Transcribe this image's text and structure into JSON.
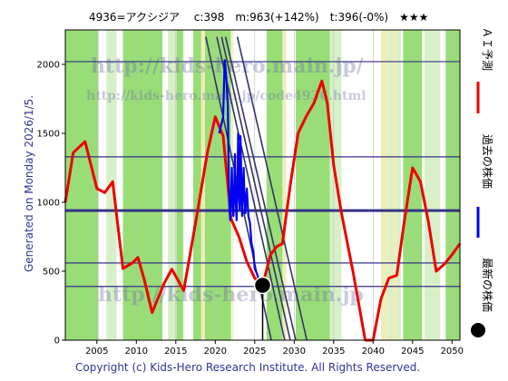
{
  "header": {
    "title": "4936=アクシジア　 c:398　m:963(+142%)　t:396(-0%)　★★★"
  },
  "side_label": "Generated on Monday 2026/1/5.",
  "legend": {
    "forecast": "ＡＩ予測",
    "past": "過去の株価",
    "latest": "最新の株価"
  },
  "footer": "Copyright (c) Kids-Hero Research Institute. All Rights Reserved.",
  "watermark": {
    "url1": "http://kids-hero.main.jp/",
    "url2": "http://kids-hero.main.jp/code4936.html",
    "url3": "http://kids-hero.main.jp"
  },
  "colors": {
    "green_band": "#99dd77",
    "yellow_band": "#eeeebb",
    "forecast": "#ee0000",
    "past": "#0000ee",
    "trend": "#333366",
    "hline": "#333388"
  },
  "chart_data": {
    "type": "line",
    "xlim": [
      2001,
      2051
    ],
    "ylim": [
      0,
      2250
    ],
    "x_ticks": [
      2005,
      2010,
      2015,
      2020,
      2025,
      2030,
      2035,
      2040,
      2045,
      2050
    ],
    "y_ticks": [
      0,
      500,
      1000,
      1500,
      2000
    ],
    "horizontal_lines": [
      390,
      560,
      940,
      1330,
      2020
    ],
    "series": [
      {
        "name": "ＡＩ予測",
        "x": [
          2001,
          2002,
          2003.5,
          2005,
          2006,
          2007,
          2008.3,
          2009.5,
          2010.2,
          2011,
          2012,
          2013.5,
          2014.5,
          2016,
          2017.5,
          2019,
          2020,
          2021,
          2022,
          2023,
          2024,
          2025,
          2026,
          2027,
          2027.8,
          2028.5,
          2029.5,
          2030.5,
          2031.5,
          2032.5,
          2033.5,
          2034.2,
          2035,
          2036,
          2037.5,
          2039,
          2040,
          2041,
          2042,
          2043,
          2044,
          2045,
          2046,
          2047,
          2048,
          2049,
          2050,
          2051
        ],
        "y": [
          1000,
          1360,
          1440,
          1100,
          1070,
          1150,
          520,
          560,
          600,
          440,
          200,
          410,
          515,
          360,
          850,
          1360,
          1620,
          1480,
          880,
          750,
          570,
          450,
          400,
          620,
          680,
          700,
          1120,
          1500,
          1620,
          1720,
          1880,
          1720,
          1270,
          920,
          480,
          -20,
          -50,
          300,
          450,
          470,
          880,
          1250,
          1150,
          860,
          500,
          550,
          620,
          700
        ]
      },
      {
        "name": "過去の株価",
        "x": [
          2020.5,
          2021,
          2021.2,
          2021.4,
          2021.6,
          2021.7,
          2021.8,
          2021.9,
          2022.0,
          2022.1,
          2022.2,
          2022.3,
          2022.4,
          2022.5,
          2022.6,
          2022.7,
          2022.8,
          2022.9,
          2023.0,
          2023.1,
          2023.2,
          2023.3,
          2023.4,
          2023.5,
          2023.6,
          2023.7,
          2023.8,
          2023.9,
          2024.0,
          2024.2,
          2024.4,
          2024.6,
          2024.8,
          2025.0,
          2025.3,
          2025.6,
          2026.0
        ],
        "y": [
          1500,
          1620,
          2030,
          1900,
          1700,
          1200,
          950,
          870,
          1050,
          1250,
          980,
          900,
          1100,
          1350,
          1000,
          870,
          1050,
          1500,
          1100,
          950,
          1480,
          1200,
          900,
          1050,
          1250,
          1050,
          920,
          1000,
          1100,
          900,
          850,
          700,
          650,
          520,
          480,
          420,
          398
        ]
      }
    ],
    "latest": {
      "x": 2026,
      "y": 398
    },
    "trend_lines": [
      {
        "x1": 2020.2,
        "y1": 2200,
        "x2": 2028.8,
        "y2": 0
      },
      {
        "x1": 2020.8,
        "y1": 2200,
        "x2": 2029.5,
        "y2": 0
      },
      {
        "x1": 2021.3,
        "y1": 2200,
        "x2": 2030.2,
        "y2": 0
      },
      {
        "x1": 2022.8,
        "y1": 2200,
        "x2": 2031.6,
        "y2": 0
      },
      {
        "x1": 2018.8,
        "y1": 2200,
        "x2": 2027.1,
        "y2": 0
      }
    ],
    "green_bands": [
      [
        2001,
        2005.2
      ],
      [
        2008.3,
        2013.3
      ],
      [
        2015.1,
        2015.9
      ],
      [
        2017.2,
        2022
      ],
      [
        2026.5,
        2028.6
      ],
      [
        2030.2,
        2034.5
      ],
      [
        2043.8,
        2046.2
      ],
      [
        2049.2,
        2051
      ]
    ],
    "yellow_bands": [
      [
        2018.2,
        2018.7
      ],
      [
        2022.1,
        2022.3
      ],
      [
        2028.5,
        2029
      ],
      [
        2041,
        2042
      ],
      [
        2042.5,
        2043
      ]
    ],
    "light_green_bands": [
      [
        2000.5,
        2002.5
      ],
      [
        2006.2,
        2007.5
      ],
      [
        2014,
        2016
      ],
      [
        2033.6,
        2036
      ],
      [
        2041.8,
        2043.5
      ],
      [
        2046.5,
        2048.5
      ]
    ]
  }
}
